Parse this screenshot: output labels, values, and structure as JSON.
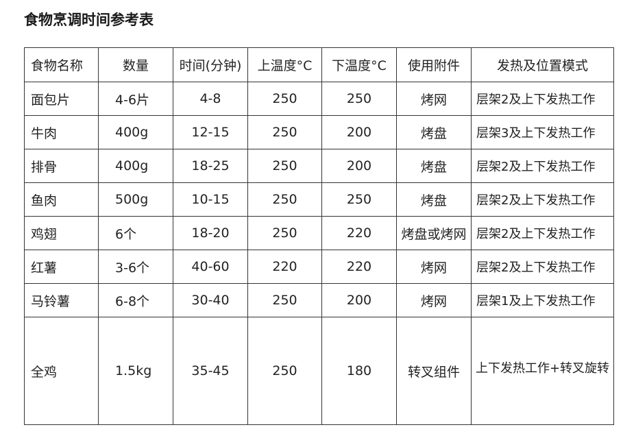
{
  "title": "食物烹调时间参考表",
  "table": {
    "headers": [
      "食物名称",
      "数量",
      "时间(分钟)",
      "上温度°C",
      "下温度°C",
      "使用附件",
      "发热及位置模式"
    ],
    "rows": [
      [
        "面包片",
        "4-6片",
        "4-8",
        "250",
        "250",
        "烤网",
        "层架2及上下发热工作"
      ],
      [
        "牛肉",
        "400g",
        "12-15",
        "250",
        "200",
        "烤盘",
        "层架3及上下发热工作"
      ],
      [
        "排骨",
        "400g",
        "18-25",
        "250",
        "200",
        "烤盘",
        "层架2及上下发热工作"
      ],
      [
        "鱼肉",
        "500g",
        "10-15",
        "250",
        "250",
        "烤盘",
        "层架2及上下发热工作"
      ],
      [
        "鸡翅",
        "6个",
        "18-20",
        "250",
        "220",
        "烤盘或烤网",
        "层架2及上下发热工作"
      ],
      [
        "红薯",
        "3-6个",
        "40-60",
        "220",
        "220",
        "烤网",
        "层架2及上下发热工作"
      ],
      [
        "马铃薯",
        "6-8个",
        "30-40",
        "250",
        "200",
        "烤网",
        "层架1及上下发热工作"
      ],
      [
        "全鸡",
        "1.5kg",
        "35-45",
        "250",
        "180",
        "转叉组件",
        "上下发热工作+转叉旋转"
      ]
    ]
  }
}
